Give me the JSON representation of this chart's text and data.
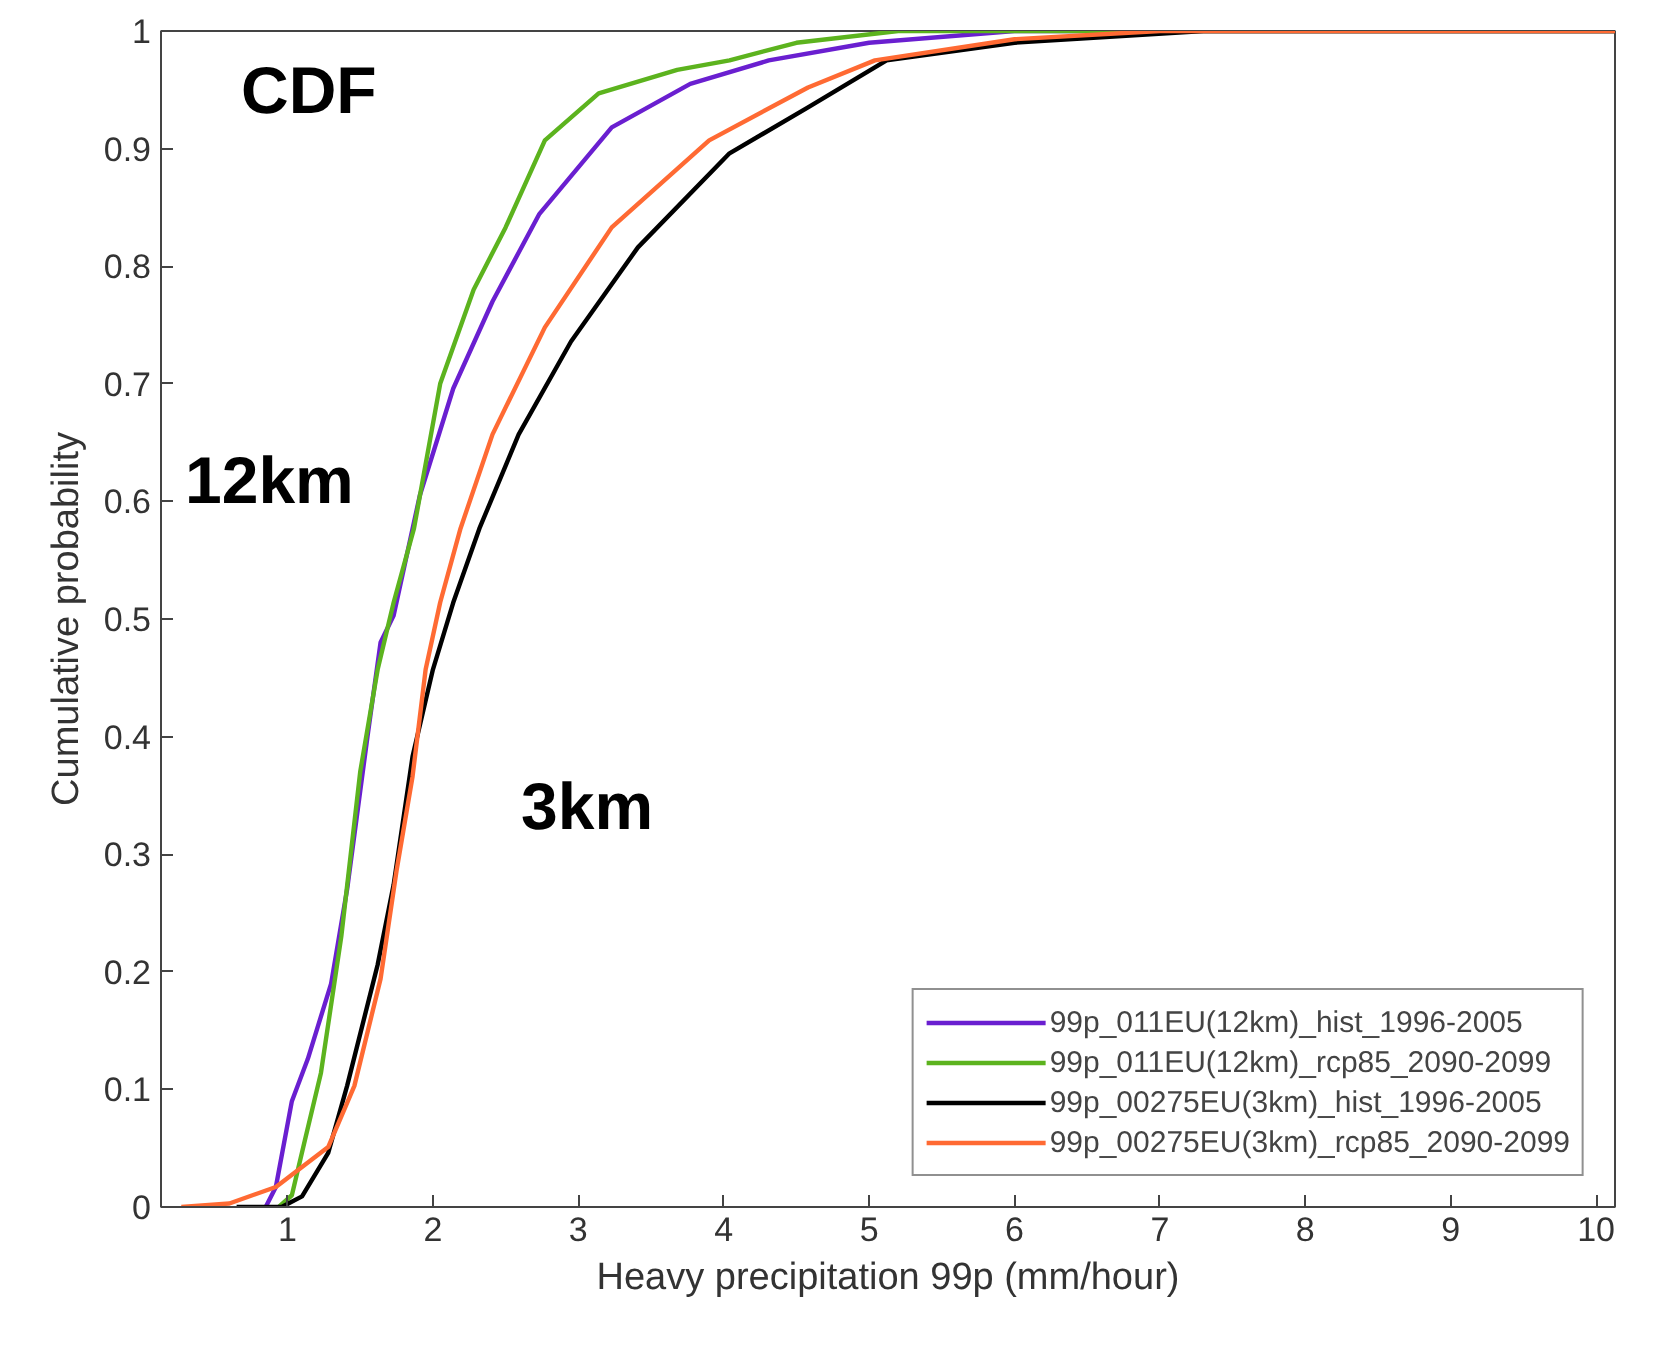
{
  "chart_data": {
    "type": "line",
    "xlabel": "Heavy precipitation 99p (mm/hour)",
    "ylabel": "Cumulative probability",
    "xlim": [
      0.13,
      10.13
    ],
    "ylim": [
      0,
      1
    ],
    "xticks": [
      1,
      2,
      3,
      4,
      5,
      6,
      7,
      8,
      9,
      10
    ],
    "yticks": [
      0,
      0.1,
      0.2,
      0.3,
      0.4,
      0.5,
      0.6,
      0.7,
      0.8,
      0.9,
      1
    ],
    "grid": false,
    "legend": "bottom right",
    "line_style": "solid",
    "marker": "none",
    "annotations": [
      "CDF",
      "12km",
      "3km"
    ],
    "series": [
      {
        "name": "99p_011EU(12km)_hist_1996-2005",
        "color": "#6a1fd0",
        "x": [
          0.85,
          0.92,
          1.03,
          1.14,
          1.3,
          1.41,
          1.55,
          1.64,
          1.73,
          1.91,
          2.14,
          2.41,
          2.73,
          3.23,
          3.77,
          4.31,
          5,
          6,
          10.13
        ],
        "values": [
          0,
          0.017,
          0.09,
          0.126,
          0.19,
          0.27,
          0.4,
          0.48,
          0.503,
          0.605,
          0.696,
          0.77,
          0.844,
          0.918,
          0.955,
          0.975,
          0.99,
          1,
          1
        ]
      },
      {
        "name": "99p_011EU(12km)_rcp85_2090-2099",
        "color": "#5cb31e",
        "x": [
          0.94,
          1.03,
          1.12,
          1.23,
          1.37,
          1.5,
          1.62,
          1.73,
          1.87,
          2.05,
          2.28,
          2.5,
          2.77,
          3.14,
          3.68,
          4.04,
          4.5,
          5.2,
          10.13
        ],
        "values": [
          0,
          0.01,
          0.057,
          0.114,
          0.23,
          0.37,
          0.457,
          0.514,
          0.577,
          0.7,
          0.78,
          0.833,
          0.907,
          0.947,
          0.967,
          0.975,
          0.99,
          1,
          1
        ]
      },
      {
        "name": "99p_00275EU(3km)_hist_1996-2005",
        "color": "#000000",
        "x": [
          0.65,
          0.96,
          1.1,
          1.28,
          1.41,
          1.62,
          1.73,
          1.86,
          2,
          2.14,
          2.32,
          2.59,
          2.95,
          3.41,
          4.04,
          4.58,
          5.12,
          6,
          7.3,
          10.13
        ],
        "values": [
          0,
          0,
          0.009,
          0.046,
          0.103,
          0.206,
          0.274,
          0.383,
          0.457,
          0.514,
          0.577,
          0.657,
          0.736,
          0.816,
          0.896,
          0.935,
          0.975,
          0.99,
          1,
          1
        ]
      },
      {
        "name": "99p_00275EU(3km)_rcp85_2090-2099",
        "color": "#ff6a33",
        "x": [
          0.27,
          0.6,
          0.92,
          1.28,
          1.46,
          1.64,
          1.75,
          1.86,
          1.95,
          2.05,
          2.19,
          2.41,
          2.77,
          3.23,
          3.9,
          4.58,
          5.04,
          6,
          7,
          10.13
        ],
        "values": [
          0,
          0.003,
          0.017,
          0.051,
          0.103,
          0.194,
          0.286,
          0.366,
          0.457,
          0.514,
          0.577,
          0.657,
          0.748,
          0.833,
          0.907,
          0.952,
          0.975,
          0.993,
          1,
          1
        ]
      }
    ]
  }
}
